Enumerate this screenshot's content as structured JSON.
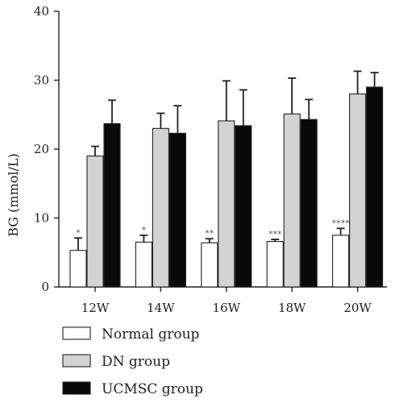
{
  "chart_data": {
    "type": "bar",
    "categories": [
      "12W",
      "14W",
      "16W",
      "18W",
      "20W"
    ],
    "series": [
      {
        "name": "Normal group",
        "values": [
          5.3,
          6.5,
          6.4,
          6.6,
          7.5
        ],
        "errors": [
          1.8,
          1.0,
          0.6,
          0.3,
          1.0
        ],
        "color": "#ffffff"
      },
      {
        "name": "DN group",
        "values": [
          19.0,
          23.0,
          24.1,
          25.1,
          28.0
        ],
        "errors": [
          1.4,
          2.2,
          5.8,
          5.2,
          3.3
        ],
        "color": "#d3d3d3"
      },
      {
        "name": "UCMSC group",
        "values": [
          23.7,
          22.3,
          23.4,
          24.3,
          29.0
        ],
        "errors": [
          3.4,
          4.0,
          5.2,
          2.9,
          2.1
        ],
        "color": "#0a0a0a"
      }
    ],
    "significance": [
      "*",
      "*",
      "**",
      "***",
      "****"
    ],
    "ylabel": "BG (mmol/L)",
    "ylim": [
      0,
      40
    ],
    "yticks": [
      0,
      10,
      20,
      30,
      40
    ],
    "grid": false,
    "legend_position": "bottom-left"
  }
}
